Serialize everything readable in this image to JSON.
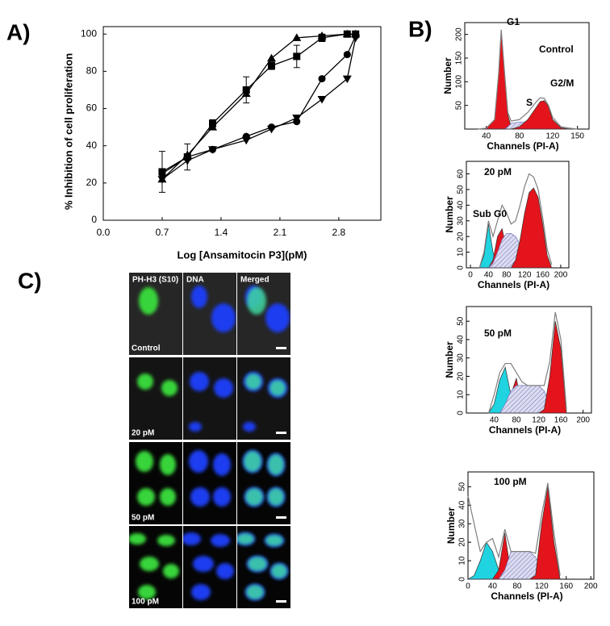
{
  "panel_labels": [
    "A)",
    "B)",
    "C)"
  ],
  "chart_data": [
    {
      "type": "line",
      "x_label": "Log [Ansamitocin P3](pM)",
      "y_label": "% Inhibition of cell proliferation",
      "x": [
        0.7,
        1.0,
        1.3,
        1.7,
        2.0,
        2.3,
        2.6,
        2.9,
        3.0
      ],
      "xlim": [
        0,
        3.3
      ],
      "xticks": [
        {
          "value": 0,
          "label": "0.0"
        },
        0.7,
        1.4,
        2.1,
        2.8
      ],
      "ylim": [
        0,
        104
      ],
      "yticks": [
        0,
        20,
        40,
        60,
        80,
        100
      ],
      "series": [
        {
          "marker": "triangle-up",
          "color": "#000000",
          "values": [
            22,
            35,
            50,
            68,
            87,
            98,
            99,
            100,
            100
          ]
        },
        {
          "marker": "square",
          "color": "#000000",
          "values": [
            26,
            34,
            52,
            70,
            83,
            88,
            98,
            100,
            100
          ],
          "errors": [
            11,
            7,
            2,
            7,
            2,
            6,
            2,
            0,
            0
          ]
        },
        {
          "marker": "circle",
          "color": "#000000",
          "values": [
            25,
            34,
            38,
            45,
            50,
            53,
            76,
            89,
            99
          ]
        },
        {
          "marker": "triangle-down",
          "color": "#000000",
          "values": [
            22,
            32,
            38,
            43,
            49,
            55,
            65,
            76,
            98
          ]
        }
      ]
    },
    {
      "type": "area",
      "x_label": "Channels (PI-A)",
      "y_label": "Number",
      "annotations": [
        "G1",
        "Control",
        "S",
        "G2/M"
      ],
      "x": [
        30,
        40,
        50,
        55,
        58,
        62,
        66,
        70,
        80,
        90,
        100,
        105,
        110,
        115,
        120,
        130,
        140,
        150
      ],
      "xlim": [
        14,
        164
      ],
      "xticks": [
        40,
        80,
        120,
        150
      ],
      "ylim": [
        0,
        225
      ],
      "yticks": [
        50,
        100,
        150,
        200
      ],
      "series": [
        {
          "color": "#e3141b",
          "fill": "solid",
          "values": [
            0,
            2,
            20,
            120,
            210,
            120,
            30,
            5,
            0,
            0,
            0,
            0,
            0,
            0,
            0,
            0,
            0,
            0
          ]
        },
        {
          "color": "#6f6fb8",
          "fill": "hatch",
          "values": [
            0,
            0,
            0,
            0,
            0,
            0,
            5,
            12,
            15,
            15,
            12,
            8,
            5,
            2,
            0,
            0,
            0,
            0
          ]
        },
        {
          "color": "#e3141b",
          "fill": "solid",
          "values": [
            0,
            0,
            0,
            0,
            0,
            0,
            0,
            0,
            5,
            20,
            45,
            58,
            60,
            48,
            20,
            3,
            0,
            0
          ]
        },
        {
          "color": "#7f7f7f",
          "fill": "none",
          "values": [
            0,
            2,
            20,
            120,
            210,
            120,
            35,
            17,
            20,
            35,
            57,
            66,
            65,
            50,
            25,
            5,
            2,
            0
          ]
        }
      ]
    },
    {
      "type": "area",
      "x_label": "Channels (PI-A)",
      "y_label": "Number",
      "annotations": [
        "20 pM",
        "Sub G0"
      ],
      "x": [
        20,
        30,
        40,
        50,
        60,
        70,
        80,
        90,
        100,
        110,
        120,
        130,
        140,
        150,
        160,
        170,
        180
      ],
      "xlim": [
        -9,
        218
      ],
      "xticks": [
        0,
        40,
        80,
        120,
        160,
        200
      ],
      "ylim": [
        0,
        68
      ],
      "yticks": [
        0,
        10,
        20,
        30,
        40,
        50,
        60
      ],
      "series": [
        {
          "color": "#1fd3e0",
          "fill": "solid",
          "values": [
            0,
            8,
            28,
            10,
            0,
            0,
            0,
            0,
            0,
            0,
            0,
            0,
            0,
            0,
            0,
            0,
            0
          ]
        },
        {
          "color": "#e3141b",
          "fill": "solid",
          "values": [
            0,
            0,
            0,
            5,
            20,
            25,
            12,
            3,
            0,
            0,
            0,
            0,
            0,
            0,
            0,
            0,
            0
          ]
        },
        {
          "color": "#6f6fb8",
          "fill": "hatch",
          "values": [
            0,
            0,
            0,
            3,
            10,
            18,
            22,
            22,
            20,
            15,
            10,
            5,
            2,
            0,
            0,
            0,
            0
          ]
        },
        {
          "color": "#e3141b",
          "fill": "solid",
          "values": [
            0,
            0,
            0,
            0,
            0,
            0,
            0,
            0,
            5,
            18,
            35,
            48,
            51,
            45,
            28,
            8,
            0
          ]
        },
        {
          "color": "#7f7f7f",
          "fill": "none",
          "values": [
            0,
            10,
            30,
            20,
            30,
            40,
            35,
            28,
            30,
            40,
            52,
            60,
            58,
            50,
            32,
            12,
            2
          ]
        }
      ]
    },
    {
      "type": "area",
      "x_label": "Channels (PI-A)",
      "y_label": "Number",
      "annotations": [
        "50 pM"
      ],
      "x": [
        30,
        40,
        50,
        60,
        70,
        80,
        90,
        100,
        110,
        120,
        130,
        140,
        150,
        160,
        170
      ],
      "xlim": [
        -10,
        215
      ],
      "xticks": [
        40,
        80,
        120,
        160,
        200
      ],
      "ylim": [
        0,
        58
      ],
      "yticks": [
        0,
        10,
        20,
        30,
        40,
        50
      ],
      "series": [
        {
          "color": "#1fd3e0",
          "fill": "solid",
          "values": [
            0,
            5,
            18,
            25,
            10,
            0,
            0,
            0,
            0,
            0,
            0,
            0,
            0,
            0,
            0
          ]
        },
        {
          "color": "#e3141b",
          "fill": "solid",
          "values": [
            0,
            0,
            0,
            0,
            10,
            19,
            2,
            0,
            0,
            0,
            0,
            0,
            0,
            0,
            0
          ]
        },
        {
          "color": "#6f6fb8",
          "fill": "hatch",
          "values": [
            0,
            0,
            0,
            5,
            12,
            15,
            15,
            15,
            15,
            15,
            12,
            5,
            0,
            0,
            0
          ]
        },
        {
          "color": "#e3141b",
          "fill": "solid",
          "values": [
            0,
            0,
            0,
            0,
            0,
            0,
            0,
            0,
            0,
            0,
            2,
            20,
            50,
            35,
            0
          ]
        },
        {
          "color": "#7f7f7f",
          "fill": "none",
          "values": [
            0,
            10,
            22,
            27,
            27,
            22,
            17,
            15,
            15,
            15,
            15,
            28,
            55,
            40,
            2
          ]
        }
      ]
    },
    {
      "type": "area",
      "x_label": "Channels (PI-A)",
      "y_label": "Number",
      "annotations": [
        "100 pM"
      ],
      "x": [
        0,
        10,
        20,
        30,
        40,
        50,
        60,
        70,
        80,
        90,
        100,
        110,
        120,
        130,
        140,
        150
      ],
      "xlim": [
        0,
        205
      ],
      "xticks": [
        0,
        40,
        80,
        120,
        160,
        200
      ],
      "ylim": [
        0,
        58
      ],
      "yticks": [
        0,
        10,
        20,
        30,
        40,
        50
      ],
      "series": [
        {
          "color": "#1fd3e0",
          "fill": "solid",
          "values": [
            0,
            2,
            10,
            20,
            15,
            5,
            0,
            0,
            0,
            0,
            0,
            0,
            0,
            0,
            0,
            0
          ]
        },
        {
          "color": "#e3141b",
          "fill": "solid",
          "values": [
            0,
            0,
            0,
            0,
            0,
            5,
            25,
            3,
            0,
            0,
            0,
            0,
            0,
            0,
            0,
            0
          ]
        },
        {
          "color": "#6f6fb8",
          "fill": "hatch",
          "values": [
            0,
            0,
            0,
            0,
            0,
            0,
            5,
            15,
            15,
            15,
            15,
            12,
            5,
            0,
            0,
            0
          ]
        },
        {
          "color": "#e3141b",
          "fill": "solid",
          "values": [
            0,
            0,
            0,
            0,
            0,
            0,
            0,
            0,
            0,
            0,
            0,
            2,
            30,
            50,
            20,
            0
          ]
        },
        {
          "color": "#7f7f7f",
          "fill": "none",
          "values": [
            45,
            30,
            15,
            20,
            22,
            12,
            27,
            15,
            15,
            15,
            15,
            14,
            35,
            52,
            25,
            2
          ]
        }
      ]
    }
  ],
  "microscopy": {
    "columns": [
      "PH-H3 (S10)",
      "DNA",
      "Merged"
    ],
    "rows": [
      "Control",
      "20 pM",
      "50 pM",
      "100 pM"
    ]
  }
}
